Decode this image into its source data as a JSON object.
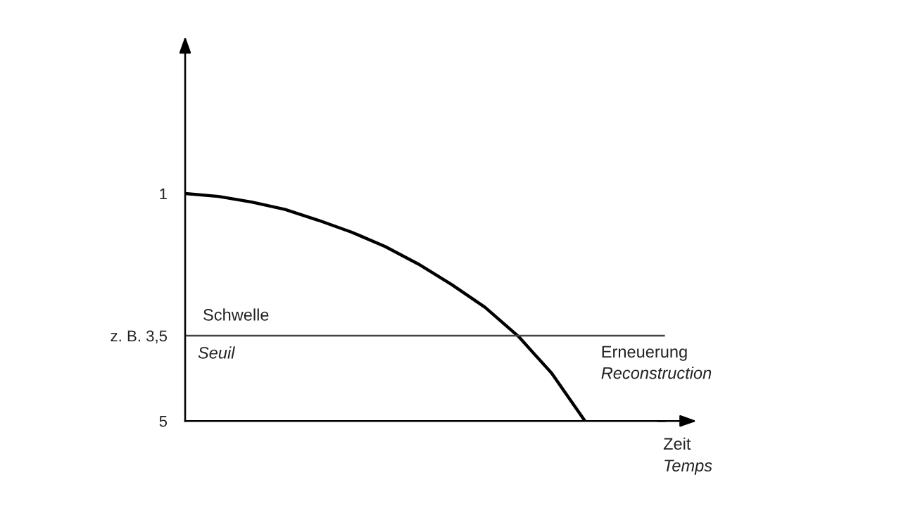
{
  "chart_data": {
    "type": "line",
    "categories": [
      null,
      null,
      null,
      null,
      null,
      null,
      null,
      null,
      null,
      null,
      null,
      null,
      null,
      null,
      null
    ],
    "series": [
      {
        "color": "#000000",
        "values": [
          1.0,
          1.05,
          1.15,
          1.28,
          1.47,
          1.68,
          1.93,
          2.24,
          2.6,
          3.0,
          3.51,
          4.16,
          5.0,
          null,
          null
        ]
      }
    ],
    "ylim": [
      5,
      -1.6
    ],
    "yticks": [
      1,
      {
        "value": 3.5,
        "label": "z. B. 3,5"
      },
      5
    ],
    "ref_lines": [
      {
        "axis": "y",
        "value": 3.5,
        "label": "Schwelle",
        "color": "#444444"
      }
    ],
    "annotations": [
      "Seuil",
      "Erneuerung",
      "Reconstruction",
      "Zeit",
      "Temps"
    ],
    "tick_labels": "y",
    "grid": false,
    "legend": false,
    "marker": "none",
    "line_style": "solid"
  }
}
